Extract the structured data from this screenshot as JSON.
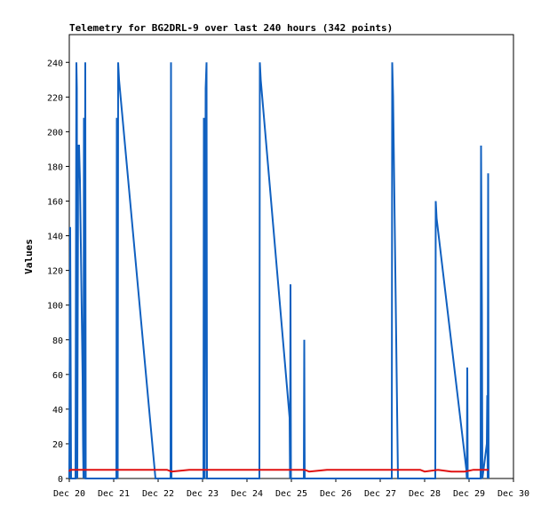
{
  "chart_data": {
    "type": "line",
    "title": "Telemetry for BG2DRL-9 over last 240 hours (342 points)",
    "xlabel": "",
    "ylabel": "Values",
    "xlim": [
      0,
      10
    ],
    "ylim": [
      0,
      256
    ],
    "grid": false,
    "x_ticks": [
      {
        "value": 0,
        "label": "Dec 20"
      },
      {
        "value": 1,
        "label": "Dec 21"
      },
      {
        "value": 2,
        "label": "Dec 22"
      },
      {
        "value": 3,
        "label": "Dec 23"
      },
      {
        "value": 4,
        "label": "Dec 24"
      },
      {
        "value": 5,
        "label": "Dec 25"
      },
      {
        "value": 6,
        "label": "Dec 26"
      },
      {
        "value": 7,
        "label": "Dec 27"
      },
      {
        "value": 8,
        "label": "Dec 28"
      },
      {
        "value": 9,
        "label": "Dec 29"
      },
      {
        "value": 10,
        "label": "Dec 30"
      }
    ],
    "y_ticks": [
      0,
      20,
      40,
      60,
      80,
      100,
      120,
      140,
      160,
      180,
      200,
      220,
      240
    ],
    "series": [
      {
        "color": "#1060c0",
        "points": [
          [
            0.0,
            0
          ],
          [
            0.02,
            145
          ],
          [
            0.04,
            0
          ],
          [
            0.14,
            0
          ],
          [
            0.16,
            240
          ],
          [
            0.17,
            225
          ],
          [
            0.18,
            0
          ],
          [
            0.2,
            192
          ],
          [
            0.22,
            192
          ],
          [
            0.24,
            172
          ],
          [
            0.26,
            135
          ],
          [
            0.28,
            96
          ],
          [
            0.3,
            58
          ],
          [
            0.31,
            20
          ],
          [
            0.32,
            0
          ],
          [
            0.33,
            208
          ],
          [
            0.34,
            0
          ],
          [
            0.36,
            240
          ],
          [
            0.37,
            0
          ],
          [
            1.06,
            0
          ],
          [
            1.07,
            208
          ],
          [
            1.09,
            0
          ],
          [
            1.1,
            240
          ],
          [
            1.12,
            230
          ],
          [
            1.94,
            0
          ],
          [
            2.28,
            0
          ],
          [
            2.29,
            240
          ],
          [
            2.3,
            0
          ],
          [
            3.02,
            0
          ],
          [
            3.03,
            208
          ],
          [
            3.05,
            0
          ],
          [
            3.07,
            225
          ],
          [
            3.09,
            240
          ],
          [
            3.1,
            0
          ],
          [
            4.28,
            0
          ],
          [
            4.29,
            240
          ],
          [
            4.31,
            230
          ],
          [
            4.96,
            35
          ],
          [
            4.97,
            0
          ],
          [
            4.98,
            112
          ],
          [
            4.99,
            0
          ],
          [
            5.28,
            0
          ],
          [
            5.29,
            80
          ],
          [
            5.3,
            0
          ],
          [
            7.26,
            0
          ],
          [
            7.27,
            240
          ],
          [
            7.29,
            220
          ],
          [
            7.31,
            180
          ],
          [
            7.33,
            140
          ],
          [
            7.35,
            100
          ],
          [
            7.37,
            60
          ],
          [
            7.39,
            20
          ],
          [
            7.4,
            0
          ],
          [
            8.24,
            0
          ],
          [
            8.25,
            160
          ],
          [
            8.27,
            150
          ],
          [
            8.94,
            5
          ],
          [
            8.95,
            0
          ],
          [
            8.96,
            64
          ],
          [
            8.97,
            0
          ],
          [
            9.26,
            0
          ],
          [
            9.27,
            192
          ],
          [
            9.29,
            96
          ],
          [
            9.3,
            0
          ],
          [
            9.4,
            20
          ],
          [
            9.41,
            48
          ],
          [
            9.42,
            0
          ],
          [
            9.43,
            176
          ],
          [
            9.44,
            0
          ]
        ]
      },
      {
        "color": "#e01010",
        "points": [
          [
            0.0,
            4
          ],
          [
            0.02,
            5
          ],
          [
            2.2,
            5
          ],
          [
            2.3,
            4
          ],
          [
            2.7,
            5
          ],
          [
            5.3,
            5
          ],
          [
            5.4,
            4
          ],
          [
            5.8,
            5
          ],
          [
            7.9,
            5
          ],
          [
            8.0,
            4
          ],
          [
            8.3,
            5
          ],
          [
            8.6,
            4
          ],
          [
            8.9,
            4
          ],
          [
            9.1,
            5
          ],
          [
            9.44,
            5
          ]
        ]
      }
    ]
  }
}
